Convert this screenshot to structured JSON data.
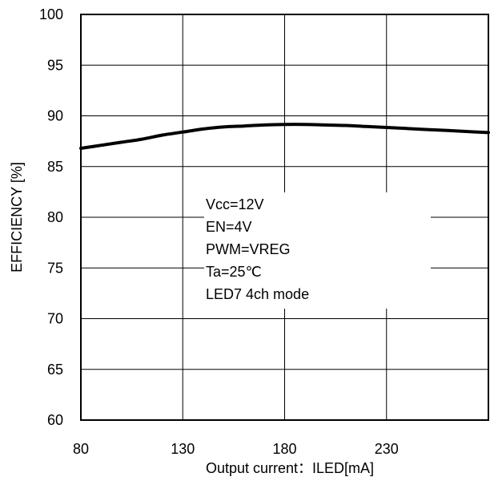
{
  "chart_data": {
    "type": "line",
    "title": "",
    "xlabel": "Output current：ILED[mA]",
    "ylabel": "EFFICIENCY [%]",
    "xlim": [
      80,
      280
    ],
    "ylim": [
      60,
      100
    ],
    "x_ticks": [
      80,
      130,
      180,
      230
    ],
    "y_ticks": [
      60,
      65,
      70,
      75,
      80,
      85,
      90,
      95,
      100
    ],
    "grid": true,
    "annotations": [
      "Vcc=12V",
      "EN=4V",
      "PWM=VREG",
      "Ta=25℃",
      "LED7 4ch mode"
    ],
    "series": [
      {
        "x": [
          80,
          90,
          100,
          110,
          120,
          130,
          140,
          150,
          160,
          170,
          180,
          190,
          200,
          210,
          220,
          230,
          240,
          250,
          260,
          270,
          280
        ],
        "values": [
          86.8,
          87.1,
          87.4,
          87.7,
          88.1,
          88.4,
          88.7,
          88.9,
          89.0,
          89.1,
          89.15,
          89.15,
          89.1,
          89.05,
          88.95,
          88.85,
          88.75,
          88.65,
          88.55,
          88.45,
          88.35
        ]
      }
    ]
  }
}
